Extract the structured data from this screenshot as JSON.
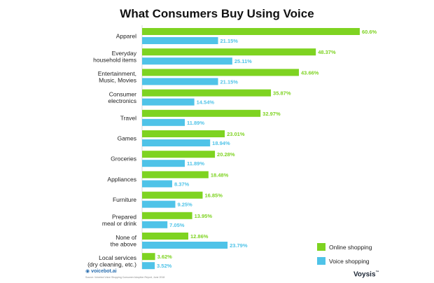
{
  "chart_data": {
    "type": "bar",
    "orientation": "horizontal",
    "title": "What Consumers Buy Using Voice",
    "categories": [
      [
        "Apparel"
      ],
      [
        "Everyday",
        "household items"
      ],
      [
        "Entertainment,",
        "Music, Movies"
      ],
      [
        "Consumer",
        "electronics"
      ],
      [
        "Travel"
      ],
      [
        "Games"
      ],
      [
        "Groceries"
      ],
      [
        "Appliances"
      ],
      [
        "Furniture"
      ],
      [
        "Prepared",
        "meal or drink"
      ],
      [
        "None of",
        "the above"
      ],
      [
        "Local services",
        "(dry cleaning, etc.)"
      ]
    ],
    "series": [
      {
        "name": "Online shopping",
        "color": "#7ed321",
        "values": [
          60.6,
          48.37,
          43.66,
          35.87,
          32.97,
          23.01,
          20.28,
          18.48,
          16.85,
          13.95,
          12.86,
          3.62
        ],
        "labels": [
          "60.6%",
          "48.37%",
          "43.66%",
          "35.87%",
          "32.97%",
          "23.01%",
          "20.28%",
          "18.48%",
          "16.85%",
          "13.95%",
          "12.86%",
          "3.62%"
        ]
      },
      {
        "name": "Voice shopping",
        "color": "#4fc3e8",
        "values": [
          21.15,
          25.11,
          21.15,
          14.54,
          11.89,
          18.94,
          11.89,
          8.37,
          9.25,
          7.05,
          23.79,
          3.52
        ],
        "labels": [
          "21.15%",
          "25.11%",
          "21.15%",
          "14.54%",
          "11.89%",
          "18.94%",
          "11.89%",
          "8.37%",
          "9.25%",
          "7.05%",
          "23.79%",
          "3.52%"
        ]
      }
    ],
    "xlim": [
      0,
      61
    ],
    "legend_position": "bottom-right"
  },
  "footer": {
    "logo_text": "voicebot.ai",
    "source_text": "Source: Voicebot Voice Shopping Consumer Adoption Report, June 2018",
    "brand_text": "Voysis",
    "brand_mark": "™"
  }
}
